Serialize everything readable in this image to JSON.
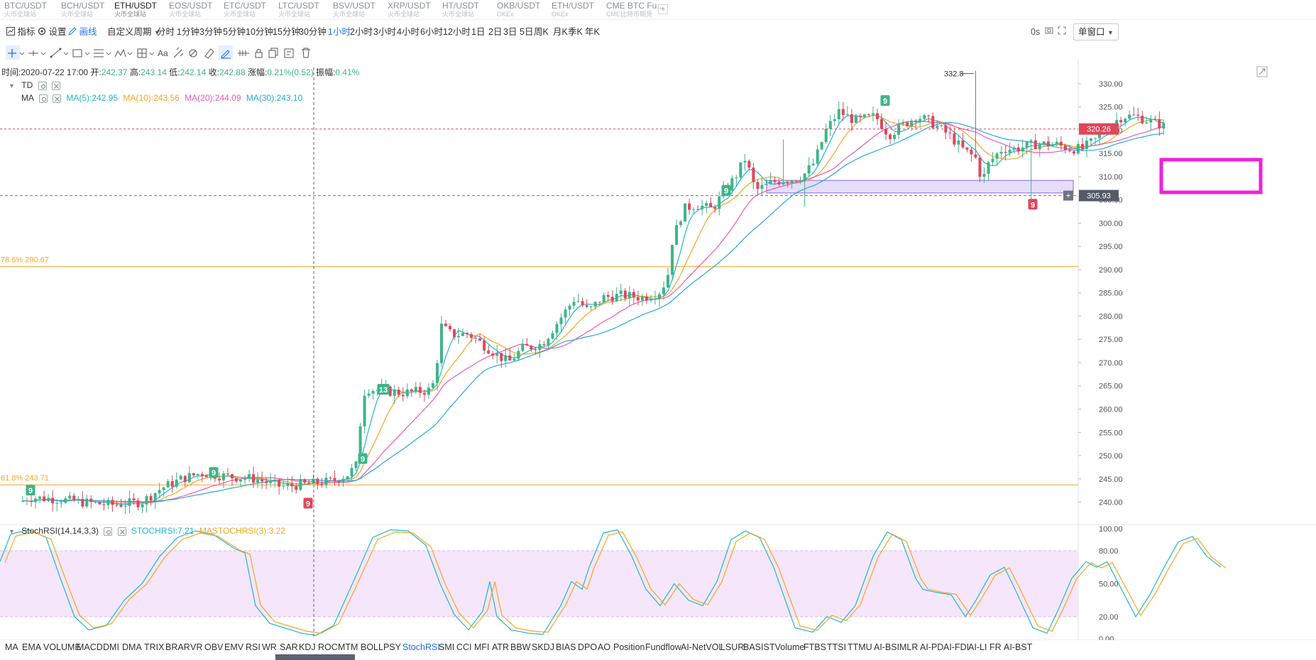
{
  "tabs": [
    {
      "pair": "BTC/USDT",
      "source": "火币全球站"
    },
    {
      "pair": "BCH/USDT",
      "source": "火币全球站"
    },
    {
      "pair": "ETH/USDT",
      "source": "火币全球站"
    },
    {
      "pair": "EOS/USDT",
      "source": "火币全球站"
    },
    {
      "pair": "ETC/USDT",
      "source": "火币全球站"
    },
    {
      "pair": "LTC/USDT",
      "source": "火币全球站"
    },
    {
      "pair": "BSV/USDT",
      "source": "火币全球站"
    },
    {
      "pair": "XRP/USDT",
      "source": "火币全球站"
    },
    {
      "pair": "HT/USDT",
      "source": "火币全球站"
    },
    {
      "pair": "OKB/USDT",
      "source": "OKEx"
    },
    {
      "pair": "ETH/USDT",
      "source": "OKEx"
    },
    {
      "pair": "CME BTC Fu...",
      "source": "CME比特币期货"
    }
  ],
  "active_tab_index": 2,
  "toolbar": {
    "indicator_label": "指标",
    "settings_label": "设置",
    "draw_label": "画线",
    "custom_period_label": "自定义周期",
    "periods": [
      "分时",
      "1分钟",
      "3分钟",
      "5分钟",
      "10分钟",
      "15分钟",
      "30分钟",
      "1小时",
      "2小时",
      "3小时",
      "4小时",
      "6小时",
      "12小时",
      "1日",
      "2日",
      "3日",
      "5日",
      "周K",
      "月K",
      "季K",
      "年K"
    ],
    "active_period": "1小时",
    "timer": "0s",
    "window_mode": "单窗口"
  },
  "ohlc": {
    "time_label": "时间:",
    "time": "2020-07-22 17:00",
    "open_label": "开:",
    "open": "242.37",
    "high_label": "高:",
    "high": "243.14",
    "low_label": "低:",
    "low": "242.14",
    "close_label": "收:",
    "close": "242.88",
    "change_label": "涨幅:",
    "change": "0.21%(0.52)",
    "amplitude_label": "振幅:",
    "amplitude": "0.41%"
  },
  "main_indicators": {
    "td_label": "TD",
    "ma_label": "MA",
    "ma5": "MA(5):242.95",
    "ma10": "MA(10):243.56",
    "ma20": "MA(20):244.09",
    "ma30": "MA(30):243.10"
  },
  "sub_indicator": {
    "name": "StochRSI(14,14,3,3)",
    "stochrsi": "STOCHRSI:7.21",
    "mastochrsi": "MASTOCHRSI(3):3.22"
  },
  "colors": {
    "up": "#3fb489",
    "down": "#e0465d",
    "ma5": "#20b8c9",
    "ma10": "#f5a623",
    "ma20": "#e85bb5",
    "ma30": "#2aa7dd",
    "fib": "#f5a623",
    "price_tag": "#e0465d",
    "cross_tag": "#555b66",
    "zone": "#c8b4f5",
    "highlight_box": "#f020d8",
    "stoch_band": "#f5e6fb"
  },
  "chart_data": {
    "type": "candlestick",
    "interval": "1小时",
    "ylim": [
      235.5,
      333.5
    ],
    "y_ticks": [
      "330.00",
      "325.00",
      "320.00",
      "315.00",
      "310.00",
      "305.00",
      "300.00",
      "295.00",
      "290.00",
      "285.00",
      "280.00",
      "275.00",
      "270.00",
      "265.00",
      "260.00",
      "255.00",
      "250.00",
      "245.00",
      "240.00"
    ],
    "last_price": "320.26",
    "crosshair_price": "305.93",
    "peak_label": "332.8",
    "fib_levels": [
      {
        "label": "78.6% 290.67",
        "value": 290.67
      },
      {
        "label": "61.8% 243.71",
        "value": 243.71
      }
    ],
    "zone": [
      306.5,
      309.2
    ],
    "ma_lines": [
      "MA(5)",
      "MA(10)",
      "MA(20)",
      "MA(30)"
    ],
    "td_markers": [
      {
        "label": "9",
        "type": "up",
        "value": 242.5
      },
      {
        "label": "9",
        "type": "up",
        "value": 246.3
      },
      {
        "label": "9",
        "type": "down",
        "value": 239.7
      },
      {
        "label": "9",
        "type": "up",
        "value": 249.3
      },
      {
        "label": "13",
        "type": "up",
        "value": 264.2
      },
      {
        "label": "9",
        "type": "up",
        "value": 307.0
      },
      {
        "label": "9",
        "type": "up",
        "value": 326.3
      },
      {
        "label": "9",
        "type": "down",
        "value": 304.0
      }
    ],
    "stoch": {
      "ylim": [
        0,
        100
      ],
      "band": [
        20,
        80
      ],
      "y_ticks": [
        "100.00",
        "80.00",
        "50.00",
        "20.00",
        "0.00"
      ]
    }
  },
  "indicator_bar": [
    "MA",
    "EMA",
    "VOLUME",
    "MACD",
    "DMI",
    "DMA",
    "TRIX",
    "BRAR",
    "VR",
    "OBV",
    "EMV",
    "RSI",
    "WR",
    "SAR",
    "KDJ",
    "ROC",
    "MTM",
    "BOLL",
    "PSY",
    "StochRSI",
    "SMI",
    "CCI",
    "MFI",
    "ATR",
    "BBW",
    "SKDJ",
    "BIAS",
    "DPO",
    "AO",
    "Position",
    "Fundflow",
    "AI-NetVOL",
    "LSUR",
    "BASIS",
    "TVolume",
    "FTBS",
    "TTSI",
    "TTMU",
    "AI-BSI",
    "MLR",
    "AI-PD",
    "AI-FDI",
    "AI-LI",
    "FR",
    "AI-BST"
  ],
  "active_indicator": "StochRSI"
}
